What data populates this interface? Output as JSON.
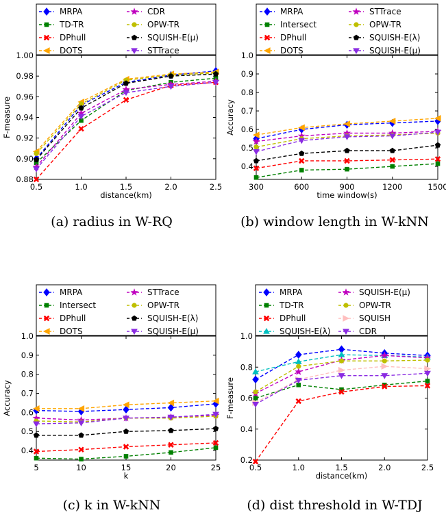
{
  "chart_data": [
    {
      "type": "line",
      "caption": "(a) radius in W-RQ",
      "xlabel": "distance(km)",
      "ylabel": "F-measure",
      "x": [
        0.5,
        1.0,
        1.5,
        2.0,
        2.5
      ],
      "xticks": [
        "0.5",
        "1.0",
        "1.5",
        "2.0",
        "2.5"
      ],
      "xlim": [
        0.5,
        2.5
      ],
      "ylim": [
        0.88,
        1.0
      ],
      "yticks": [
        "0.88",
        "0.90",
        "0.92",
        "0.94",
        "0.96",
        "0.98",
        "1.00"
      ],
      "grid": false,
      "legend_position": "above",
      "series": [
        {
          "name": "MRPA",
          "color": "#0000ff",
          "marker": "diamond",
          "values": [
            0.9,
            0.952,
            0.974,
            0.981,
            0.985
          ]
        },
        {
          "name": "TD-TR",
          "color": "#008000",
          "marker": "square",
          "values": [
            0.896,
            0.937,
            0.966,
            0.974,
            0.978
          ]
        },
        {
          "name": "DPhull",
          "color": "#ff0000",
          "marker": "x",
          "values": [
            0.88,
            0.929,
            0.957,
            0.971,
            0.974
          ]
        },
        {
          "name": "DOTS",
          "color": "#ffa500",
          "marker": "tri-left",
          "values": [
            0.907,
            0.955,
            0.977,
            0.982,
            0.984
          ]
        },
        {
          "name": "CDR",
          "color": "#bf00bf",
          "marker": "star",
          "values": [
            0.892,
            0.944,
            0.967,
            0.972,
            0.975
          ]
        },
        {
          "name": "OPW-TR",
          "color": "#bfbf00",
          "marker": "circle",
          "values": [
            0.905,
            0.953,
            0.976,
            0.981,
            0.983
          ]
        },
        {
          "name": "SQUISH-E(μ)",
          "color": "#000000",
          "marker": "pentagon",
          "values": [
            0.899,
            0.949,
            0.973,
            0.98,
            0.982
          ]
        },
        {
          "name": "STTrace",
          "color": "#8a2be2",
          "marker": "tri-down",
          "values": [
            0.89,
            0.941,
            0.964,
            0.97,
            0.974
          ]
        }
      ]
    },
    {
      "type": "line",
      "caption": "(b) window length in W-kNN",
      "xlabel": "time window(s)",
      "ylabel": "Accuracy",
      "x": [
        300,
        600,
        900,
        1200,
        1500
      ],
      "xticks": [
        "300",
        "600",
        "900",
        "1200",
        "1500"
      ],
      "xlim": [
        300,
        1500
      ],
      "ylim": [
        0.33,
        1.0
      ],
      "yticks": [
        "0.4",
        "0.5",
        "0.6",
        "0.7",
        "0.8",
        "0.9",
        "1.0"
      ],
      "grid": false,
      "legend_position": "above",
      "series": [
        {
          "name": "MRPA",
          "color": "#0000ff",
          "marker": "diamond",
          "values": [
            0.55,
            0.6,
            0.625,
            0.635,
            0.645
          ]
        },
        {
          "name": "Intersect",
          "color": "#008000",
          "marker": "square",
          "values": [
            0.34,
            0.38,
            0.385,
            0.4,
            0.415
          ]
        },
        {
          "name": "DPhull",
          "color": "#ff0000",
          "marker": "x",
          "values": [
            0.39,
            0.43,
            0.43,
            0.435,
            0.44
          ]
        },
        {
          "name": "DOTS",
          "color": "#ffa500",
          "marker": "tri-left",
          "values": [
            0.57,
            0.61,
            0.63,
            0.645,
            0.66
          ]
        },
        {
          "name": "STTrace",
          "color": "#bf00bf",
          "marker": "star",
          "values": [
            0.535,
            0.565,
            0.58,
            0.58,
            0.59
          ]
        },
        {
          "name": "OPW-TR",
          "color": "#bfbf00",
          "marker": "circle",
          "values": [
            0.505,
            0.55,
            0.565,
            0.57,
            0.58
          ]
        },
        {
          "name": "SQUISH-E(λ)",
          "color": "#000000",
          "marker": "pentagon",
          "values": [
            0.43,
            0.47,
            0.485,
            0.485,
            0.515
          ]
        },
        {
          "name": "SQUISH-E(μ)",
          "color": "#8a2be2",
          "marker": "tri-down",
          "values": [
            0.48,
            0.54,
            0.56,
            0.565,
            0.585
          ]
        }
      ]
    },
    {
      "type": "line",
      "caption": "(c) k in W-kNN",
      "xlabel": "k",
      "ylabel": "Accuracy",
      "x": [
        5,
        10,
        15,
        20,
        25
      ],
      "xticks": [
        "5",
        "10",
        "15",
        "20",
        "25"
      ],
      "xlim": [
        5,
        25
      ],
      "ylim": [
        0.35,
        1.0
      ],
      "yticks": [
        "0.4",
        "0.5",
        "0.6",
        "0.7",
        "0.8",
        "0.9",
        "1.0"
      ],
      "grid": false,
      "legend_position": "above",
      "series": [
        {
          "name": "MRPA",
          "color": "#0000ff",
          "marker": "diamond",
          "values": [
            0.61,
            0.605,
            0.615,
            0.625,
            0.645
          ]
        },
        {
          "name": "Intersect",
          "color": "#008000",
          "marker": "square",
          "values": [
            0.36,
            0.355,
            0.37,
            0.39,
            0.415
          ]
        },
        {
          "name": "DPhull",
          "color": "#ff0000",
          "marker": "x",
          "values": [
            0.395,
            0.405,
            0.42,
            0.43,
            0.44
          ]
        },
        {
          "name": "DOTS",
          "color": "#ffa500",
          "marker": "tri-left",
          "values": [
            0.62,
            0.62,
            0.64,
            0.65,
            0.66
          ]
        },
        {
          "name": "STTrace",
          "color": "#bf00bf",
          "marker": "star",
          "values": [
            0.57,
            0.56,
            0.57,
            0.575,
            0.585
          ]
        },
        {
          "name": "OPW-TR",
          "color": "#bfbf00",
          "marker": "circle",
          "values": [
            0.555,
            0.55,
            0.57,
            0.57,
            0.58
          ]
        },
        {
          "name": "SQUISH-E(λ)",
          "color": "#000000",
          "marker": "pentagon",
          "values": [
            0.48,
            0.48,
            0.5,
            0.505,
            0.515
          ]
        },
        {
          "name": "SQUISH-E(μ)",
          "color": "#8a2be2",
          "marker": "tri-down",
          "values": [
            0.54,
            0.545,
            0.57,
            0.575,
            0.59
          ]
        }
      ]
    },
    {
      "type": "line",
      "caption": "(d) dist threshold in W-TDJ",
      "xlabel": "distance(km)",
      "ylabel": "F-measure",
      "x": [
        0.5,
        1.0,
        1.5,
        2.0,
        2.5
      ],
      "xticks": [
        "0.5",
        "1.0",
        "1.5",
        "2.0",
        "2.5"
      ],
      "xlim": [
        0.5,
        2.5
      ],
      "ylim": [
        0.2,
        1.0
      ],
      "yticks": [
        "0.2",
        "0.4",
        "0.6",
        "0.8",
        "1.0"
      ],
      "grid": false,
      "legend_position": "above",
      "series": [
        {
          "name": "MRPA",
          "color": "#0000ff",
          "marker": "diamond",
          "values": [
            0.72,
            0.88,
            0.915,
            0.89,
            0.875
          ]
        },
        {
          "name": "TD-TR",
          "color": "#008000",
          "marker": "square",
          "values": [
            0.6,
            0.685,
            0.655,
            0.685,
            0.71
          ]
        },
        {
          "name": "DPhull",
          "color": "#ff0000",
          "marker": "x",
          "values": [
            0.19,
            0.58,
            0.64,
            0.675,
            0.68
          ]
        },
        {
          "name": "SQUISH-E(λ)",
          "color": "#00bfbf",
          "marker": "tri-up",
          "values": [
            0.77,
            0.835,
            0.88,
            0.875,
            0.865
          ]
        },
        {
          "name": "SQUISH-E(μ)",
          "color": "#bf00bf",
          "marker": "star",
          "values": [
            0.63,
            0.77,
            0.845,
            0.875,
            0.86
          ]
        },
        {
          "name": "OPW-TR",
          "color": "#bfbf00",
          "marker": "circle",
          "values": [
            0.64,
            0.805,
            0.84,
            0.84,
            0.845
          ]
        },
        {
          "name": "SQUISH",
          "color": "#ffbfbf",
          "marker": "tri-right",
          "values": [
            0.57,
            0.72,
            0.78,
            0.805,
            0.79
          ]
        },
        {
          "name": "CDR",
          "color": "#8a2be2",
          "marker": "tri-down",
          "values": [
            0.56,
            0.715,
            0.745,
            0.745,
            0.76
          ]
        }
      ]
    }
  ]
}
